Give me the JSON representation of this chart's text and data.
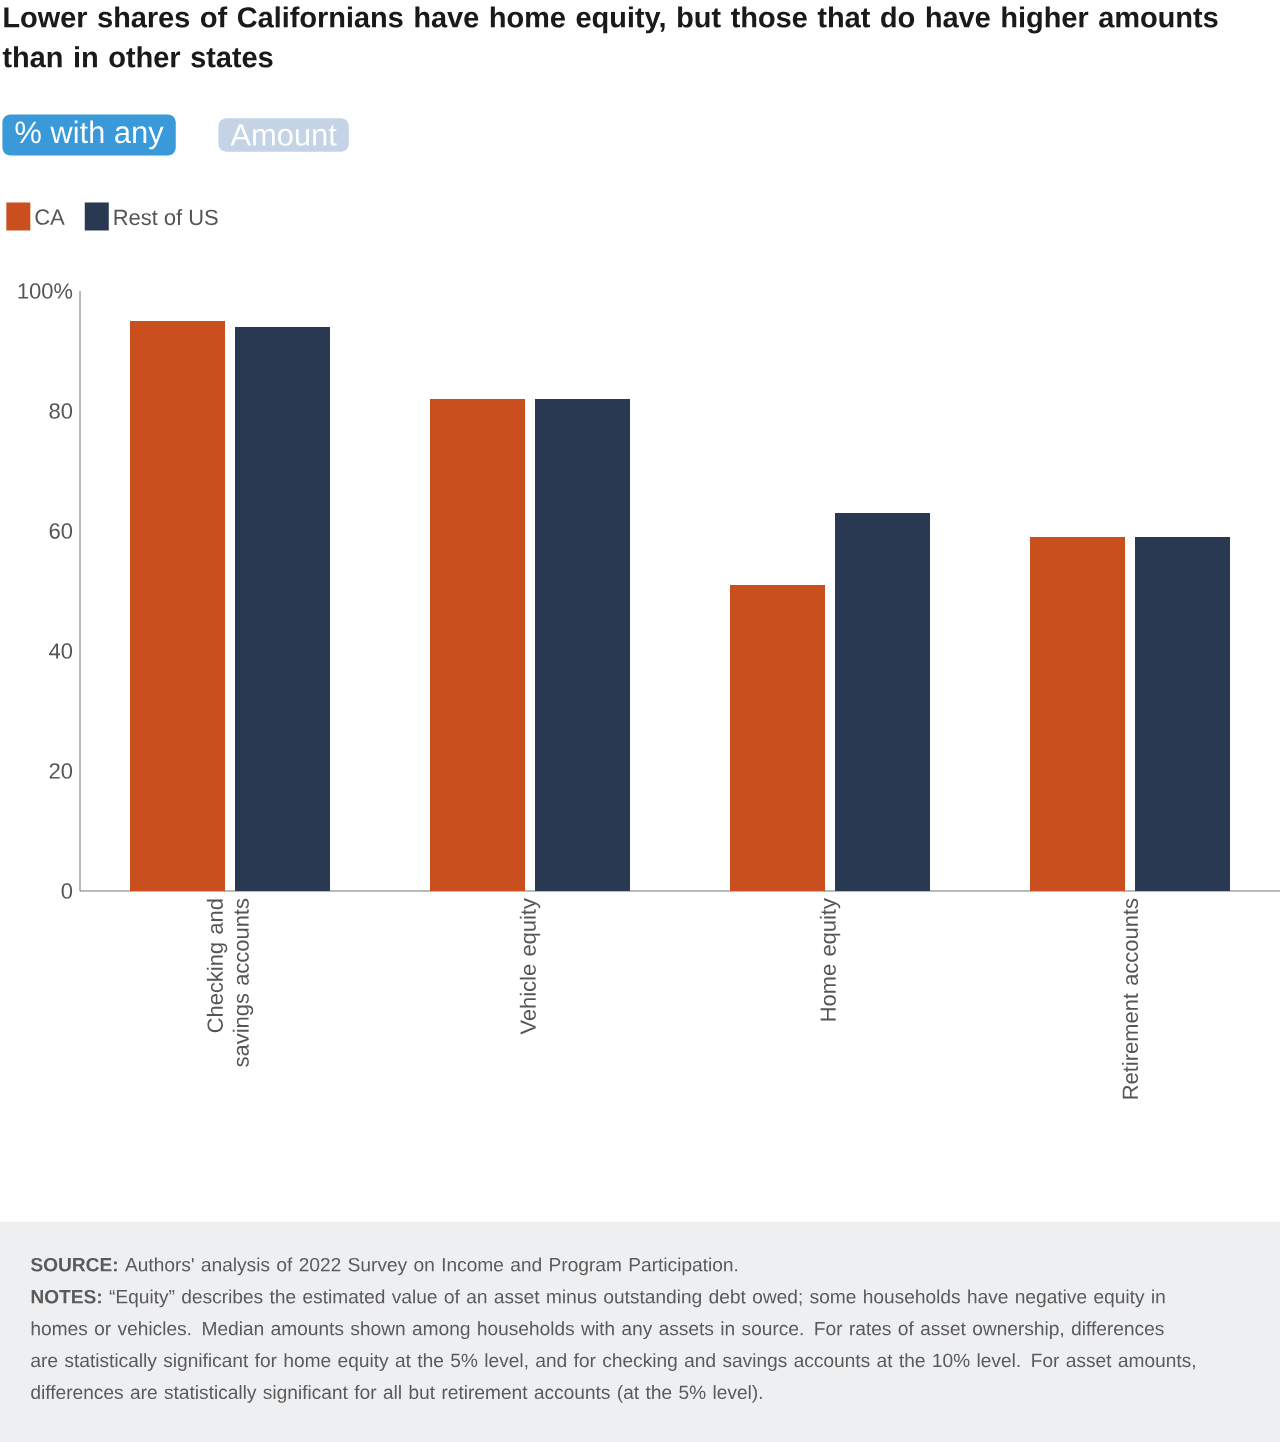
{
  "chart_data": {
    "type": "bar",
    "title": "Lower shares of Californians have home equity, but those that do have higher amounts than in other states",
    "categories": [
      "Checking and savings accounts",
      "Vehicle equity",
      "Home equity",
      "Retirement accounts"
    ],
    "series": [
      {
        "name": "CA",
        "color": "#c94f1e",
        "values": [
          95,
          82,
          51,
          59
        ]
      },
      {
        "name": "Rest of US",
        "color": "#283951",
        "values": [
          94,
          82,
          63,
          59
        ]
      }
    ],
    "ylim": [
      0,
      100
    ],
    "yticks": [
      0,
      20,
      40,
      60,
      80,
      {
        "value": 100,
        "label": "100%"
      }
    ],
    "legend": "top left",
    "annotations": [
      "% with any",
      "Amount",
      "**SOURCE:** Authors' analysis of 2022 Survey on Income and Program Participation.",
      "**NOTES:** “Equity” describes the estimated value of an asset minus outstanding debt owed; some households have negative equity in homes or vehicles. Median amounts shown among households with any assets in source. For rates of asset ownership, differences are statistically significant for home equity at the 5% level, and for checking and savings accounts at the 10% level. For asset amounts, differences are statistically significant for all but retirement accounts (at the 5% level)."
    ]
  }
}
